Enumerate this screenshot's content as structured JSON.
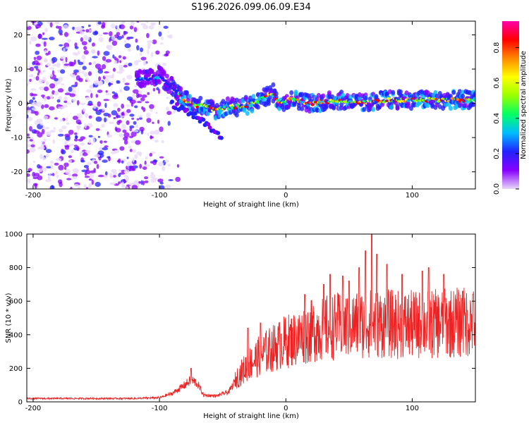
{
  "title": "S196.2026.099.06.09.E34",
  "chart_data": [
    {
      "type": "heatmap",
      "name": "spectrogram",
      "xlabel": "Height of straight line (km)",
      "ylabel": "Frequency (Hz)",
      "xlim": [
        -205,
        150
      ],
      "ylim": [
        -25,
        24
      ],
      "xticks": [
        -200,
        -100,
        0,
        100
      ],
      "xtick_labels": [
        "-200",
        "-100",
        "0",
        "100"
      ],
      "yticks": [
        -20,
        -10,
        0,
        10,
        20
      ],
      "ytick_labels": [
        "-20",
        "-10",
        "0",
        "10",
        "20"
      ],
      "ridge": [
        {
          "x": -110,
          "y": 7
        },
        {
          "x": -100,
          "y": 8
        },
        {
          "x": -90,
          "y": 5
        },
        {
          "x": -85,
          "y": 3
        },
        {
          "x": -80,
          "y": 1
        },
        {
          "x": -75,
          "y": 0
        },
        {
          "x": -65,
          "y": -1
        },
        {
          "x": -55,
          "y": -2
        },
        {
          "x": -45,
          "y": -1
        },
        {
          "x": -35,
          "y": -1
        },
        {
          "x": -25,
          "y": 0
        },
        {
          "x": -15,
          "y": 2
        },
        {
          "x": -10,
          "y": 3
        },
        {
          "x": -5,
          "y": 0
        },
        {
          "x": 0,
          "y": 1
        },
        {
          "x": 10,
          "y": 1
        },
        {
          "x": 20,
          "y": 0
        },
        {
          "x": 40,
          "y": 1
        },
        {
          "x": 60,
          "y": 0
        },
        {
          "x": 80,
          "y": 1
        },
        {
          "x": 100,
          "y": 1
        },
        {
          "x": 120,
          "y": 1
        },
        {
          "x": 140,
          "y": 1
        },
        {
          "x": 150,
          "y": 1
        }
      ],
      "branch": [
        {
          "x": -90,
          "y": 0
        },
        {
          "x": -80,
          "y": -2
        },
        {
          "x": -70,
          "y": -4
        },
        {
          "x": -60,
          "y": -7
        },
        {
          "x": -55,
          "y": -9
        },
        {
          "x": -50,
          "y": -10
        }
      ],
      "colorbar": {
        "label": "Normalized spectral amplitude",
        "range": [
          0,
          0.95
        ],
        "ticks": [
          0.0,
          0.2,
          0.4,
          0.6,
          0.8
        ],
        "tick_labels": [
          "0.0",
          "0.2",
          "0.4",
          "0.6",
          "0.8"
        ],
        "colors": [
          "#e8d8f8",
          "#8800ff",
          "#2222ff",
          "#00bbff",
          "#00ff66",
          "#99ff00",
          "#ffff00",
          "#ff8800",
          "#ff0000",
          "#ff00aa"
        ]
      }
    },
    {
      "type": "line",
      "name": "snr",
      "xlabel": "Height of straight line (km)",
      "ylabel": "SNR (10 * v/v)",
      "xlim": [
        -205,
        150
      ],
      "ylim": [
        0,
        1000
      ],
      "xticks": [
        -200,
        -100,
        0,
        100
      ],
      "xtick_labels": [
        "-200",
        "-100",
        "0",
        "100"
      ],
      "yticks": [
        0,
        200,
        400,
        600,
        800,
        1000
      ],
      "ytick_labels": [
        "0",
        "200",
        "400",
        "600",
        "800",
        "1000"
      ],
      "color": "#ee2222",
      "envelope": [
        {
          "x": -205,
          "y": 20
        },
        {
          "x": -120,
          "y": 20
        },
        {
          "x": -100,
          "y": 25
        },
        {
          "x": -90,
          "y": 50
        },
        {
          "x": -80,
          "y": 100
        },
        {
          "x": -75,
          "y": 130
        },
        {
          "x": -70,
          "y": 110
        },
        {
          "x": -65,
          "y": 40
        },
        {
          "x": -55,
          "y": 35
        },
        {
          "x": -45,
          "y": 60
        },
        {
          "x": -38,
          "y": 150
        },
        {
          "x": -30,
          "y": 220
        },
        {
          "x": -20,
          "y": 280
        },
        {
          "x": -10,
          "y": 320
        },
        {
          "x": 0,
          "y": 360
        },
        {
          "x": 10,
          "y": 380
        },
        {
          "x": 20,
          "y": 420
        },
        {
          "x": 30,
          "y": 440
        },
        {
          "x": 40,
          "y": 450
        },
        {
          "x": 55,
          "y": 460
        },
        {
          "x": 70,
          "y": 470
        },
        {
          "x": 90,
          "y": 460
        },
        {
          "x": 110,
          "y": 460
        },
        {
          "x": 130,
          "y": 470
        },
        {
          "x": 150,
          "y": 480
        }
      ],
      "peaks": [
        {
          "x": -75,
          "y": 200
        },
        {
          "x": -30,
          "y": 440
        },
        {
          "x": -20,
          "y": 470
        },
        {
          "x": 15,
          "y": 640
        },
        {
          "x": 30,
          "y": 700
        },
        {
          "x": 35,
          "y": 760
        },
        {
          "x": 45,
          "y": 750
        },
        {
          "x": 50,
          "y": 720
        },
        {
          "x": 58,
          "y": 800
        },
        {
          "x": 63,
          "y": 900
        },
        {
          "x": 68,
          "y": 1000
        },
        {
          "x": 72,
          "y": 880
        },
        {
          "x": 80,
          "y": 820
        },
        {
          "x": 92,
          "y": 760
        },
        {
          "x": 108,
          "y": 780
        },
        {
          "x": 113,
          "y": 800
        },
        {
          "x": 125,
          "y": 760
        },
        {
          "x": 140,
          "y": 660
        },
        {
          "x": 148,
          "y": 640
        }
      ]
    }
  ]
}
